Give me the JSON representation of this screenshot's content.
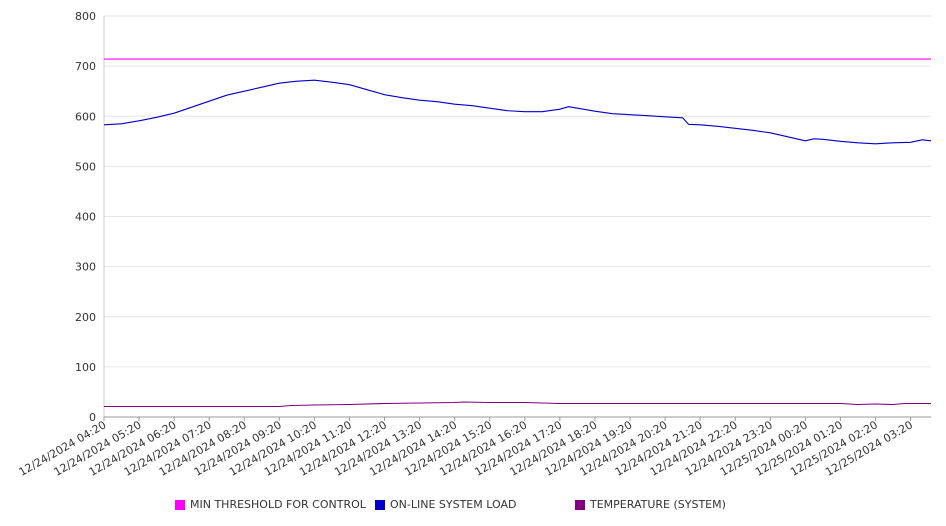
{
  "chart_data": {
    "type": "line",
    "ylim": [
      0,
      800
    ],
    "y_ticks": [
      0,
      100,
      200,
      300,
      400,
      500,
      600,
      700,
      800
    ],
    "x_range": [
      "12/24/2024 04:20",
      "12/25/2024 03:55"
    ],
    "x_tick_labels": [
      "12/24/2024 04:20",
      "12/24/2024 05:20",
      "12/24/2024 06:20",
      "12/24/2024 07:20",
      "12/24/2024 08:20",
      "12/24/2024 09:20",
      "12/24/2024 10:20",
      "12/24/2024 11:20",
      "12/24/2024 12:20",
      "12/24/2024 13:20",
      "12/24/2024 14:20",
      "12/24/2024 15:20",
      "12/24/2024 16:20",
      "12/24/2024 17:20",
      "12/24/2024 18:20",
      "12/24/2024 19:20",
      "12/24/2024 20:20",
      "12/24/2024 21:20",
      "12/24/2024 22:20",
      "12/24/2024 23:20",
      "12/25/2024 00:20",
      "12/25/2024 01:20",
      "12/25/2024 02:20",
      "12/25/2024 03:20"
    ],
    "grid": true,
    "legend_position": "bottom",
    "series": [
      {
        "name": "MIN THRESHOLD FOR CONTROL",
        "color": "#ff00ff",
        "points": [
          [
            "12/24/2024 04:20",
            714
          ],
          [
            "12/25/2024 03:55",
            714
          ]
        ]
      },
      {
        "name": "ON-LINE SYSTEM LOAD",
        "color": "#0000cc",
        "points": [
          [
            "12/24/2024 04:20",
            583
          ],
          [
            "12/24/2024 04:50",
            585
          ],
          [
            "12/24/2024 05:20",
            591
          ],
          [
            "12/24/2024 05:50",
            598
          ],
          [
            "12/24/2024 06:20",
            606
          ],
          [
            "12/24/2024 06:50",
            618
          ],
          [
            "12/24/2024 07:20",
            630
          ],
          [
            "12/24/2024 07:50",
            642
          ],
          [
            "12/24/2024 08:20",
            650
          ],
          [
            "12/24/2024 08:50",
            658
          ],
          [
            "12/24/2024 09:20",
            666
          ],
          [
            "12/24/2024 09:50",
            670
          ],
          [
            "12/24/2024 10:20",
            672
          ],
          [
            "12/24/2024 10:50",
            668
          ],
          [
            "12/24/2024 11:20",
            663
          ],
          [
            "12/24/2024 11:50",
            653
          ],
          [
            "12/24/2024 12:20",
            643
          ],
          [
            "12/24/2024 12:50",
            637
          ],
          [
            "12/24/2024 13:20",
            632
          ],
          [
            "12/24/2024 13:50",
            629
          ],
          [
            "12/24/2024 14:20",
            624
          ],
          [
            "12/24/2024 14:50",
            621
          ],
          [
            "12/24/2024 15:20",
            616
          ],
          [
            "12/24/2024 15:50",
            611
          ],
          [
            "12/24/2024 16:20",
            609
          ],
          [
            "12/24/2024 16:50",
            609
          ],
          [
            "12/24/2024 17:20",
            614
          ],
          [
            "12/24/2024 17:35",
            619
          ],
          [
            "12/24/2024 17:50",
            616
          ],
          [
            "12/24/2024 18:20",
            610
          ],
          [
            "12/24/2024 18:50",
            605
          ],
          [
            "12/24/2024 19:20",
            603
          ],
          [
            "12/24/2024 19:50",
            601
          ],
          [
            "12/24/2024 20:20",
            599
          ],
          [
            "12/24/2024 20:50",
            597
          ],
          [
            "12/24/2024 21:00",
            584
          ],
          [
            "12/24/2024 21:20",
            583
          ],
          [
            "12/24/2024 21:50",
            580
          ],
          [
            "12/24/2024 22:20",
            576
          ],
          [
            "12/24/2024 22:50",
            572
          ],
          [
            "12/24/2024 23:20",
            567
          ],
          [
            "12/24/2024 23:50",
            559
          ],
          [
            "12/25/2024 00:20",
            551
          ],
          [
            "12/25/2024 00:35",
            555
          ],
          [
            "12/25/2024 00:50",
            554
          ],
          [
            "12/25/2024 01:20",
            550
          ],
          [
            "12/25/2024 01:50",
            547
          ],
          [
            "12/25/2024 02:20",
            545
          ],
          [
            "12/25/2024 02:50",
            547
          ],
          [
            "12/25/2024 03:20",
            548
          ],
          [
            "12/25/2024 03:40",
            553
          ],
          [
            "12/25/2024 03:55",
            551
          ]
        ]
      },
      {
        "name": "TEMPERATURE (SYSTEM)",
        "color": "#800080",
        "points": [
          [
            "12/24/2024 04:20",
            21
          ],
          [
            "12/24/2024 07:20",
            21
          ],
          [
            "12/24/2024 09:20",
            21
          ],
          [
            "12/24/2024 09:40",
            23
          ],
          [
            "12/24/2024 10:20",
            24
          ],
          [
            "12/24/2024 11:20",
            25
          ],
          [
            "12/24/2024 12:20",
            27
          ],
          [
            "12/24/2024 13:20",
            28
          ],
          [
            "12/24/2024 14:20",
            29
          ],
          [
            "12/24/2024 14:35",
            30
          ],
          [
            "12/24/2024 15:20",
            29
          ],
          [
            "12/24/2024 16:20",
            29
          ],
          [
            "12/24/2024 17:20",
            27
          ],
          [
            "12/24/2024 20:20",
            27
          ],
          [
            "12/24/2024 23:20",
            27
          ],
          [
            "12/25/2024 01:20",
            27
          ],
          [
            "12/25/2024 01:50",
            25
          ],
          [
            "12/25/2024 02:20",
            26
          ],
          [
            "12/25/2024 02:50",
            25
          ],
          [
            "12/25/2024 03:10",
            27
          ],
          [
            "12/25/2024 03:55",
            27
          ]
        ]
      }
    ]
  }
}
